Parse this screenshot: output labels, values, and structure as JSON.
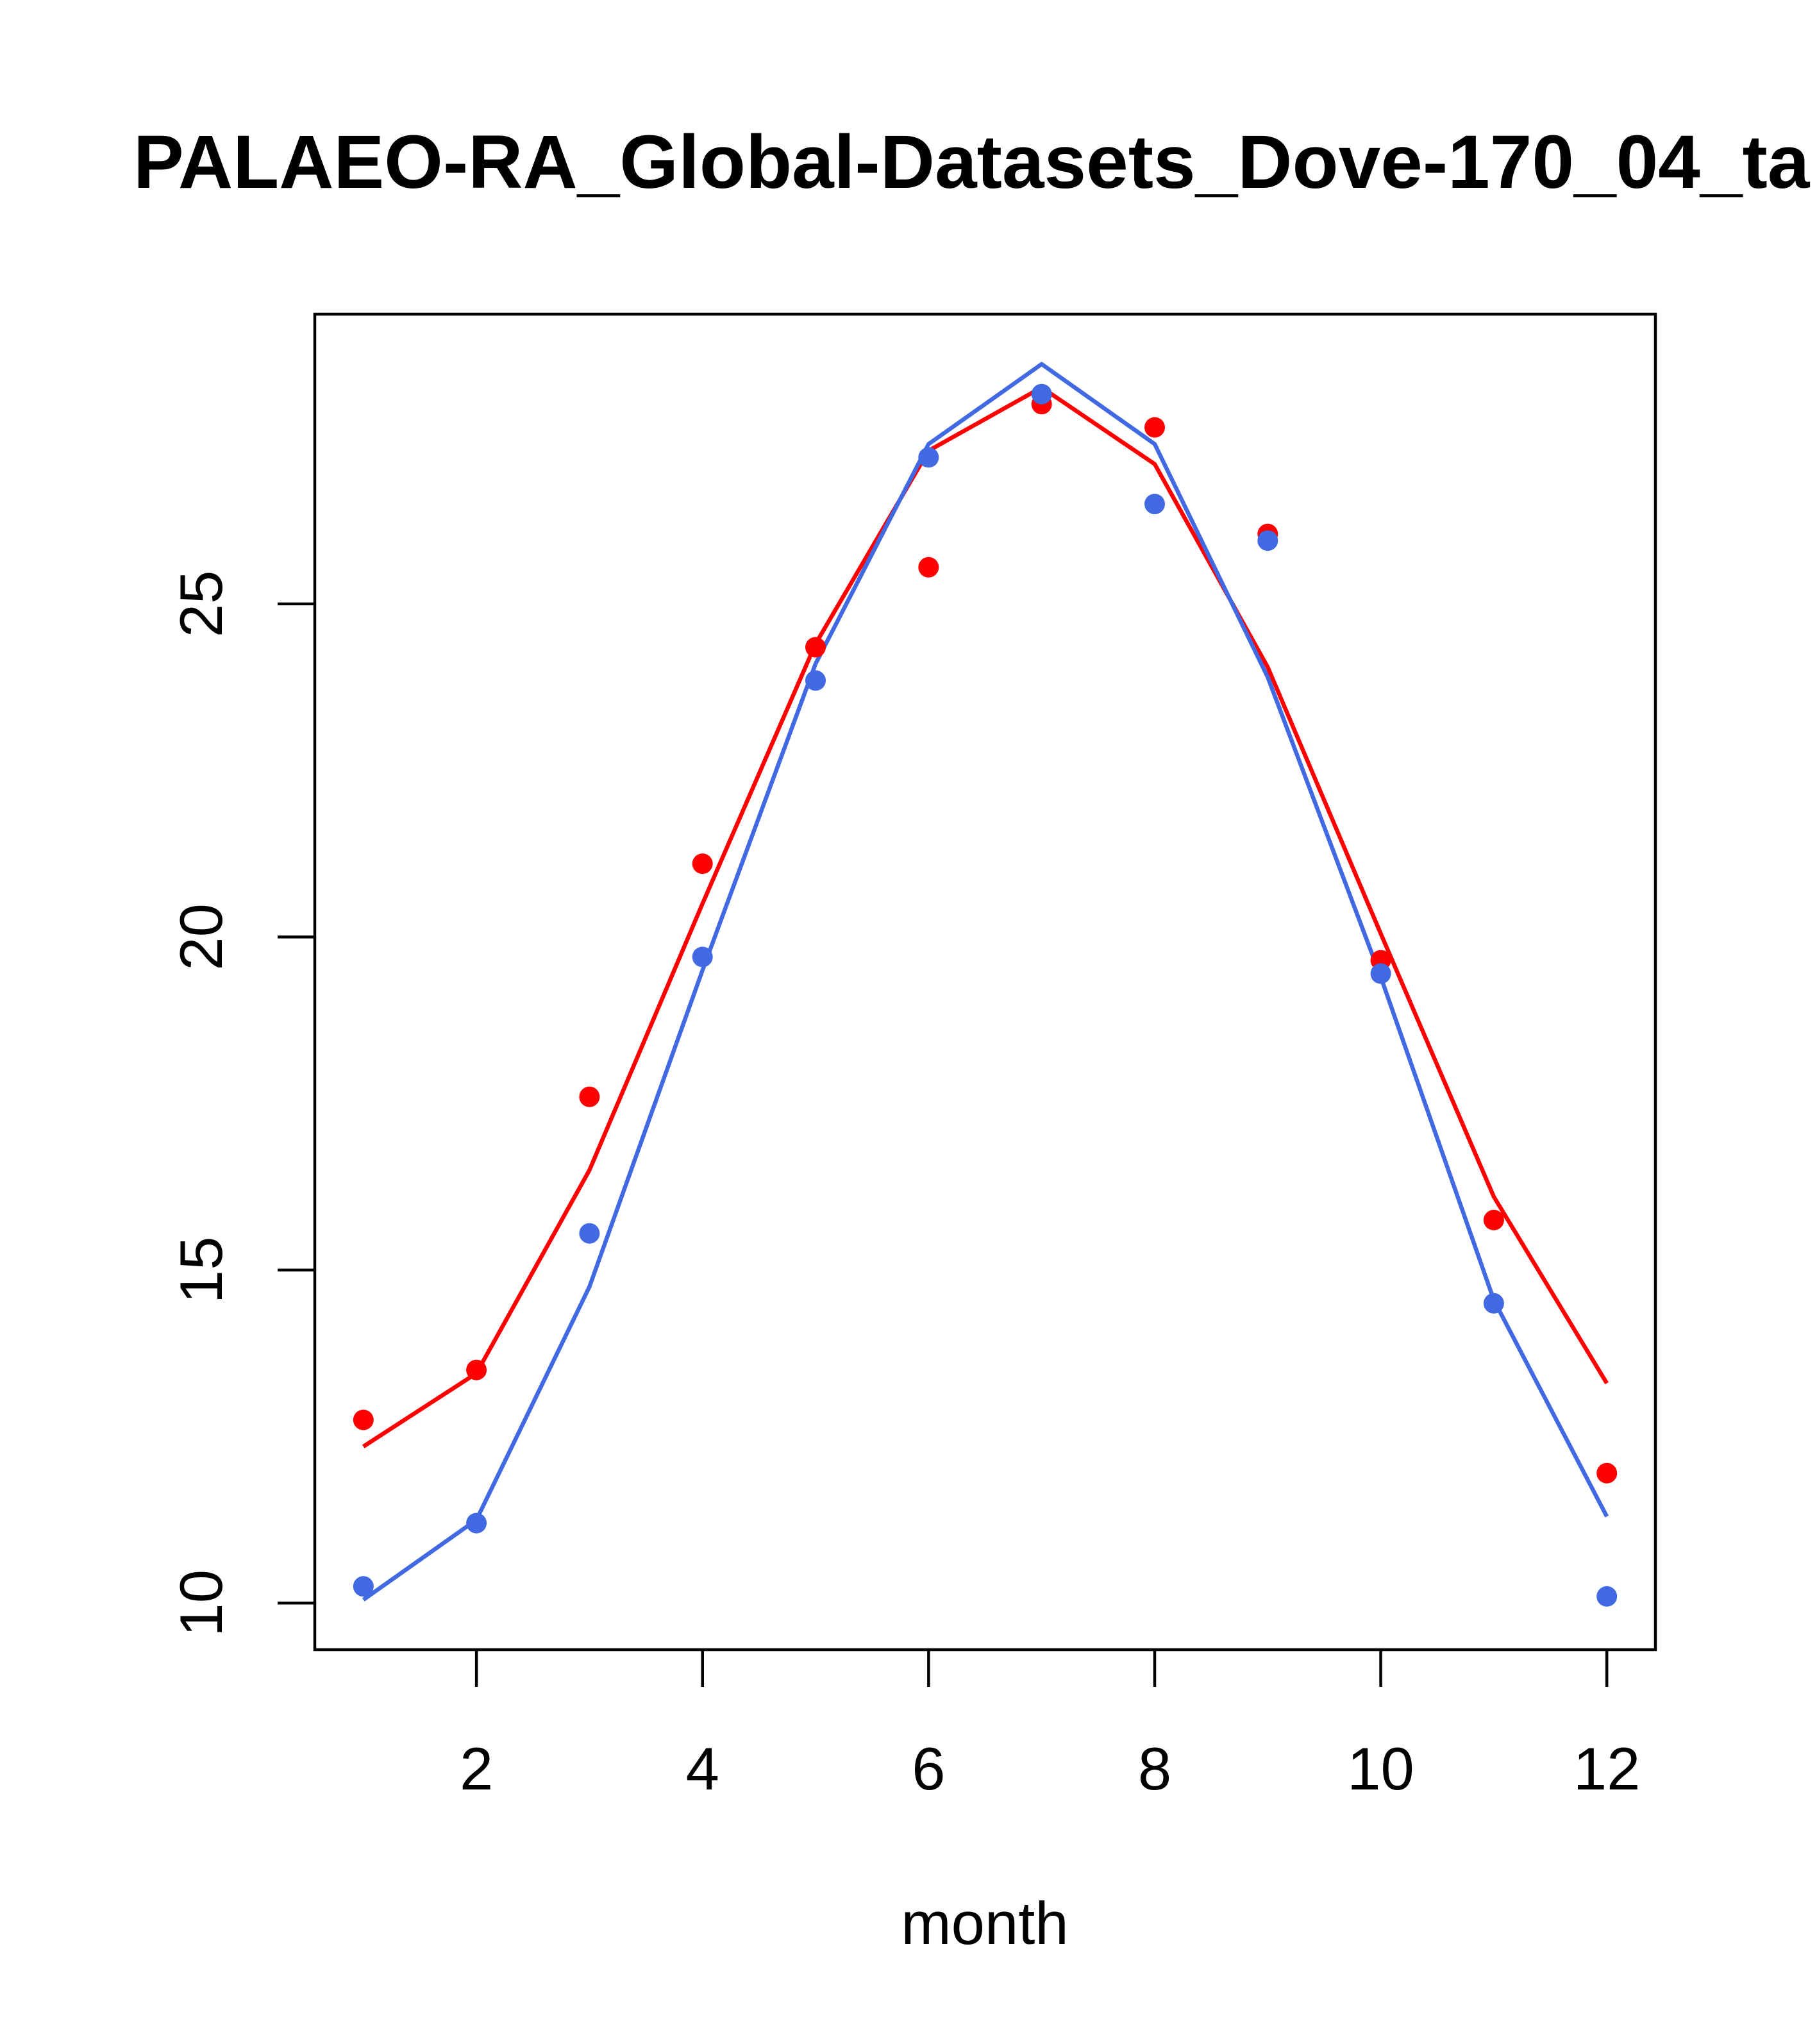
{
  "chart_data": {
    "type": "line",
    "title": "PALAEO-RA_Global-Datasets_Dove-170_04_ta",
    "xlabel": "month",
    "ylabel": "",
    "xlim": [
      0.57,
      12.43
    ],
    "ylim": [
      9.3,
      29.35
    ],
    "x": [
      1,
      2,
      3,
      4,
      5,
      6,
      7,
      8,
      9,
      10,
      11,
      12
    ],
    "xticks": [
      2,
      4,
      6,
      8,
      10,
      12
    ],
    "yticks": [
      10,
      15,
      20,
      25
    ],
    "series": [
      {
        "name": "red",
        "color": "#ff0000",
        "line": [
          12.35,
          13.45,
          16.5,
          20.5,
          24.4,
          27.3,
          28.25,
          27.1,
          24.05,
          20.05,
          16.1,
          13.3
        ],
        "points": [
          12.75,
          13.5,
          17.6,
          21.1,
          24.35,
          25.55,
          28.0,
          27.65,
          26.05,
          19.65,
          15.75,
          11.95
        ]
      },
      {
        "name": "blue",
        "color": "#4169e1",
        "line": [
          10.05,
          11.25,
          14.75,
          19.5,
          24.1,
          27.4,
          28.6,
          27.4,
          23.9,
          19.4,
          14.55,
          11.3
        ],
        "points": [
          10.25,
          11.2,
          15.55,
          19.7,
          23.85,
          27.2,
          28.15,
          26.5,
          25.95,
          19.45,
          14.5,
          10.1
        ]
      }
    ]
  }
}
